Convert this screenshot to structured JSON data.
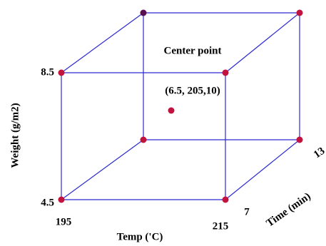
{
  "axes": {
    "weight": {
      "label": "Weight (g/m2)",
      "ticks": [
        "8.5",
        "4.5"
      ]
    },
    "temp": {
      "label": "Temp ('C)",
      "ticks": [
        "195",
        "215"
      ]
    },
    "time": {
      "label": "Time (min)",
      "ticks": [
        "7",
        "13"
      ]
    }
  },
  "annotation": {
    "title": "Center point",
    "coords": "(6.5, 205,10)"
  }
}
